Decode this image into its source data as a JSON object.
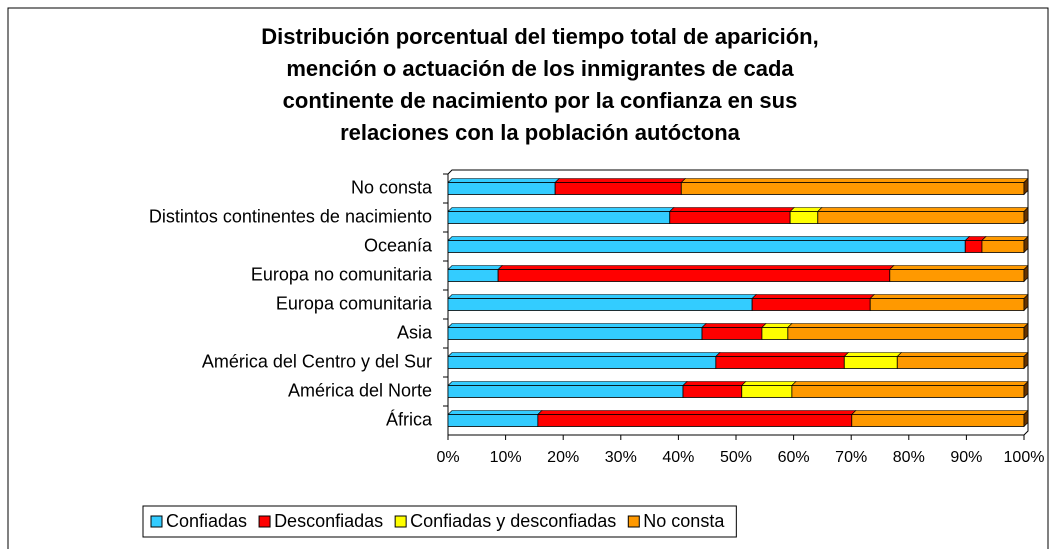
{
  "chart_data": {
    "type": "stacked_barh",
    "title": [
      "Distribución porcentual del tiempo total de aparición,",
      "mención o actuación de los inmigrantes de cada",
      "continente de nacimiento por la confianza en sus",
      "relaciones con la población autóctona"
    ],
    "categories": [
      "No consta",
      "Distintos continentes de nacimiento",
      "Oceanía",
      "Europa no comunitaria",
      "Europa comunitaria",
      "Asia",
      "América del Centro y del Sur",
      "América del Norte",
      "África"
    ],
    "series": [
      {
        "name": "Confiadas",
        "color": "#33ccff",
        "values": [
          18.6,
          38.5,
          89.8,
          8.7,
          52.8,
          44.1,
          46.5,
          40.8,
          15.6
        ]
      },
      {
        "name": "Desconfiadas",
        "color": "#ff0000",
        "values": [
          21.9,
          20.9,
          2.9,
          68.0,
          20.5,
          10.4,
          22.3,
          10.2,
          54.5
        ]
      },
      {
        "name": "Confiadas y desconfiadas",
        "color": "#ffff00",
        "values": [
          0,
          4.8,
          0,
          0,
          0,
          4.5,
          9.2,
          8.7,
          0
        ]
      },
      {
        "name": "No consta",
        "color": "#ff9900",
        "values": [
          59.5,
          35.8,
          7.3,
          23.3,
          26.7,
          41.0,
          22.0,
          40.3,
          29.9
        ]
      }
    ],
    "xlim": [
      0,
      100
    ],
    "xticks": [
      {
        "value": 0,
        "label": "0%"
      },
      {
        "value": 10,
        "label": "10%"
      },
      {
        "value": 20,
        "label": "20%"
      },
      {
        "value": 30,
        "label": "30%"
      },
      {
        "value": 40,
        "label": "40%"
      },
      {
        "value": 50,
        "label": "50%"
      },
      {
        "value": 60,
        "label": "60%"
      },
      {
        "value": 70,
        "label": "70%"
      },
      {
        "value": 80,
        "label": "80%"
      },
      {
        "value": 90,
        "label": "90%"
      },
      {
        "value": 100,
        "label": "100%"
      }
    ],
    "legend": "bottom"
  }
}
